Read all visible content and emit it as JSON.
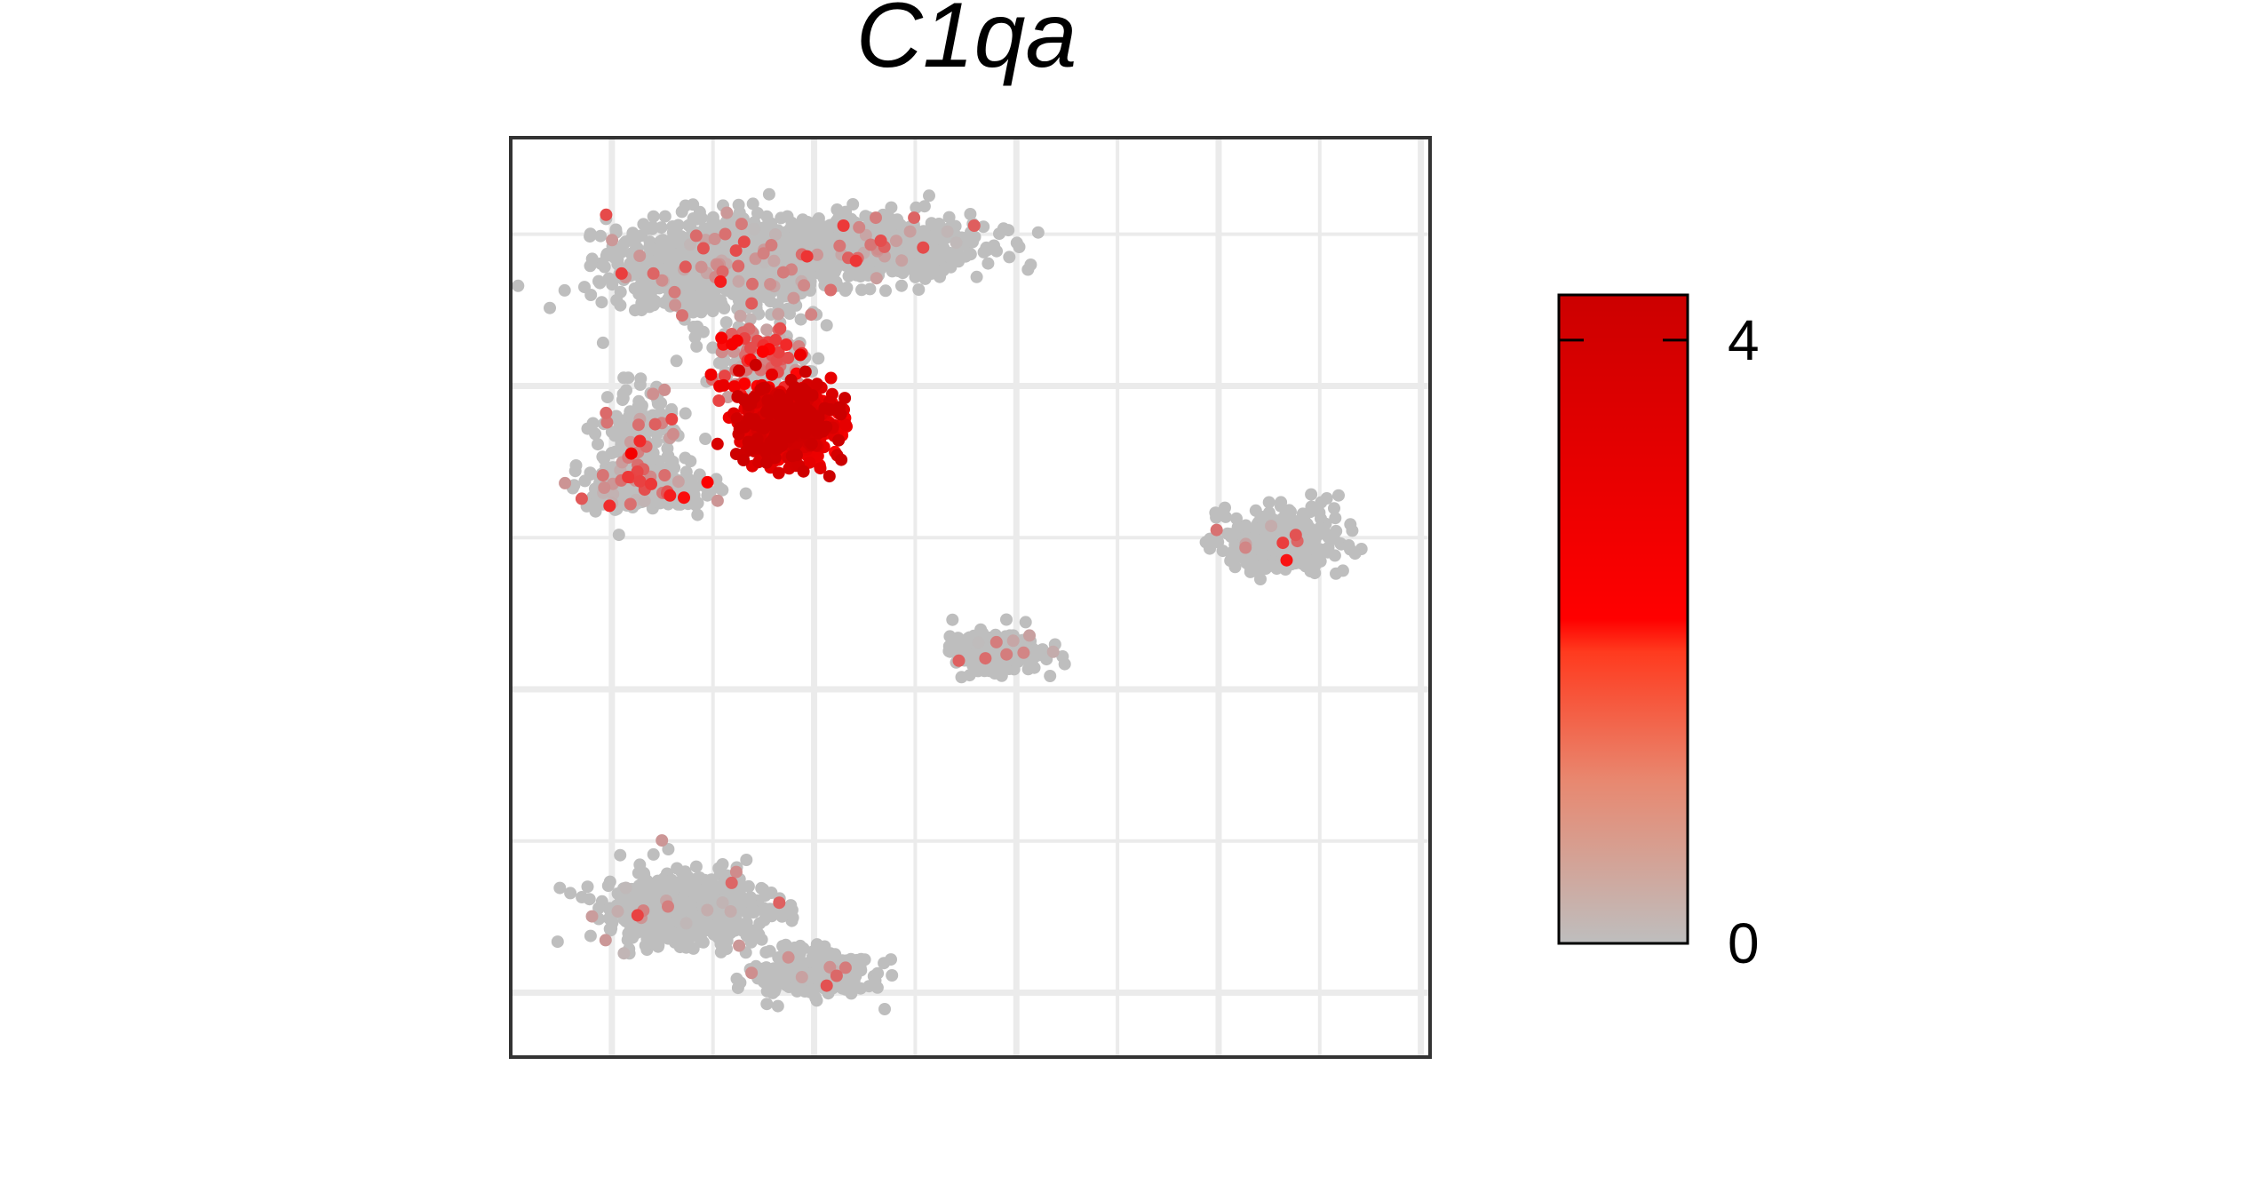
{
  "chart_data": {
    "type": "scatter",
    "title": "C1qa",
    "xlabel": "",
    "ylabel": "",
    "xlim": [
      0,
      100
    ],
    "ylim": [
      0,
      100
    ],
    "grid": true,
    "point_colors": {
      "low": "#bebebe",
      "mid": "#ff0000",
      "high": "#cc0000"
    },
    "colorbar": {
      "min": 0,
      "max": 4.3,
      "ticks": [
        {
          "value": 0,
          "label": "0"
        },
        {
          "value": 4,
          "label": "4"
        }
      ],
      "position": "right"
    },
    "clusters": [
      {
        "name": "",
        "center": [
          22,
          86
        ],
        "spread": [
          11,
          5
        ],
        "n": 900,
        "expr": 0.12
      },
      {
        "name": "",
        "center": [
          37,
          88
        ],
        "spread": [
          14,
          3.5
        ],
        "n": 700,
        "expr": 0.12
      },
      {
        "name": "",
        "center": [
          14,
          67
        ],
        "spread": [
          4,
          6
        ],
        "n": 200,
        "expr": 0.25
      },
      {
        "name": "",
        "center": [
          14,
          62
        ],
        "spread": [
          7,
          2.5
        ],
        "n": 250,
        "expr": 0.35
      },
      {
        "name": "",
        "center": [
          27,
          76
        ],
        "spread": [
          5,
          5
        ],
        "n": 200,
        "expr": 0.9
      },
      {
        "name": "",
        "center": [
          30,
          69
        ],
        "spread": [
          5,
          4
        ],
        "n": 700,
        "expr": 3.4
      },
      {
        "name": "",
        "center": [
          84,
          56
        ],
        "spread": [
          6,
          3.5
        ],
        "n": 400,
        "expr": 0.05
      },
      {
        "name": "",
        "center": [
          53,
          44
        ],
        "spread": [
          5,
          2
        ],
        "n": 250,
        "expr": 0.05
      },
      {
        "name": "",
        "center": [
          19,
          16
        ],
        "spread": [
          9,
          4
        ],
        "n": 600,
        "expr": 0.06
      },
      {
        "name": "",
        "center": [
          33,
          9
        ],
        "spread": [
          6,
          2.5
        ],
        "n": 300,
        "expr": 0.08
      }
    ]
  }
}
